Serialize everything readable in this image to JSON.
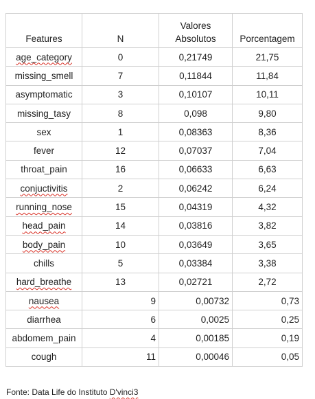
{
  "table": {
    "headers": {
      "feature": "Features",
      "n": "N",
      "abs_line1": "Valores",
      "abs_line2": "Absolutos",
      "pct": "Porcentagem"
    },
    "rows": [
      {
        "feature": "age_category",
        "n": "0",
        "abs": "0,21749",
        "pct": "21,75",
        "spell": true,
        "align": "center"
      },
      {
        "feature": "missing_smell",
        "n": "7",
        "abs": "0,11844",
        "pct": "11,84",
        "spell": false,
        "align": "center"
      },
      {
        "feature": "asymptomatic",
        "n": "3",
        "abs": "0,10107",
        "pct": "10,11",
        "spell": false,
        "align": "center"
      },
      {
        "feature": "missing_tasy",
        "n": "8",
        "abs": "0,098",
        "pct": "9,80",
        "spell": false,
        "align": "center"
      },
      {
        "feature": "sex",
        "n": "1",
        "abs": "0,08363",
        "pct": "8,36",
        "spell": false,
        "align": "center"
      },
      {
        "feature": "fever",
        "n": "12",
        "abs": "0,07037",
        "pct": "7,04",
        "spell": false,
        "align": "center"
      },
      {
        "feature": "throat_pain",
        "n": "16",
        "abs": "0,06633",
        "pct": "6,63",
        "spell": false,
        "align": "center"
      },
      {
        "feature": "conjuctivitis",
        "n": "2",
        "abs": "0,06242",
        "pct": "6,24",
        "spell": true,
        "align": "center"
      },
      {
        "feature": "running_nose",
        "n": "15",
        "abs": "0,04319",
        "pct": "4,32",
        "spell": true,
        "align": "center"
      },
      {
        "feature": "head_pain",
        "n": "14",
        "abs": "0,03816",
        "pct": "3,82",
        "spell": true,
        "align": "center"
      },
      {
        "feature": "body_pain",
        "n": "10",
        "abs": "0,03649",
        "pct": "3,65",
        "spell": true,
        "align": "center"
      },
      {
        "feature": "chills",
        "n": "5",
        "abs": "0,03384",
        "pct": "3,38",
        "spell": false,
        "align": "center"
      },
      {
        "feature": "hard_breathe",
        "n": "13",
        "abs": "0,02721",
        "pct": "2,72",
        "spell": true,
        "align": "center"
      },
      {
        "feature": "nausea",
        "n": "9",
        "abs": "0,00732",
        "pct": "0,73",
        "spell": true,
        "align": "right"
      },
      {
        "feature": "diarrhea",
        "n": "6",
        "abs": "0,0025",
        "pct": "0,25",
        "spell": false,
        "align": "right"
      },
      {
        "feature": "abdomem_pain",
        "n": "4",
        "abs": "0,00185",
        "pct": "0,19",
        "spell": false,
        "align": "right"
      },
      {
        "feature": "cough",
        "n": "11",
        "abs": "0,00046",
        "pct": "0,05",
        "spell": false,
        "align": "right"
      }
    ]
  },
  "source": {
    "prefix": "Fonte: Data Life do Instituto ",
    "name": "D'vinci3"
  }
}
